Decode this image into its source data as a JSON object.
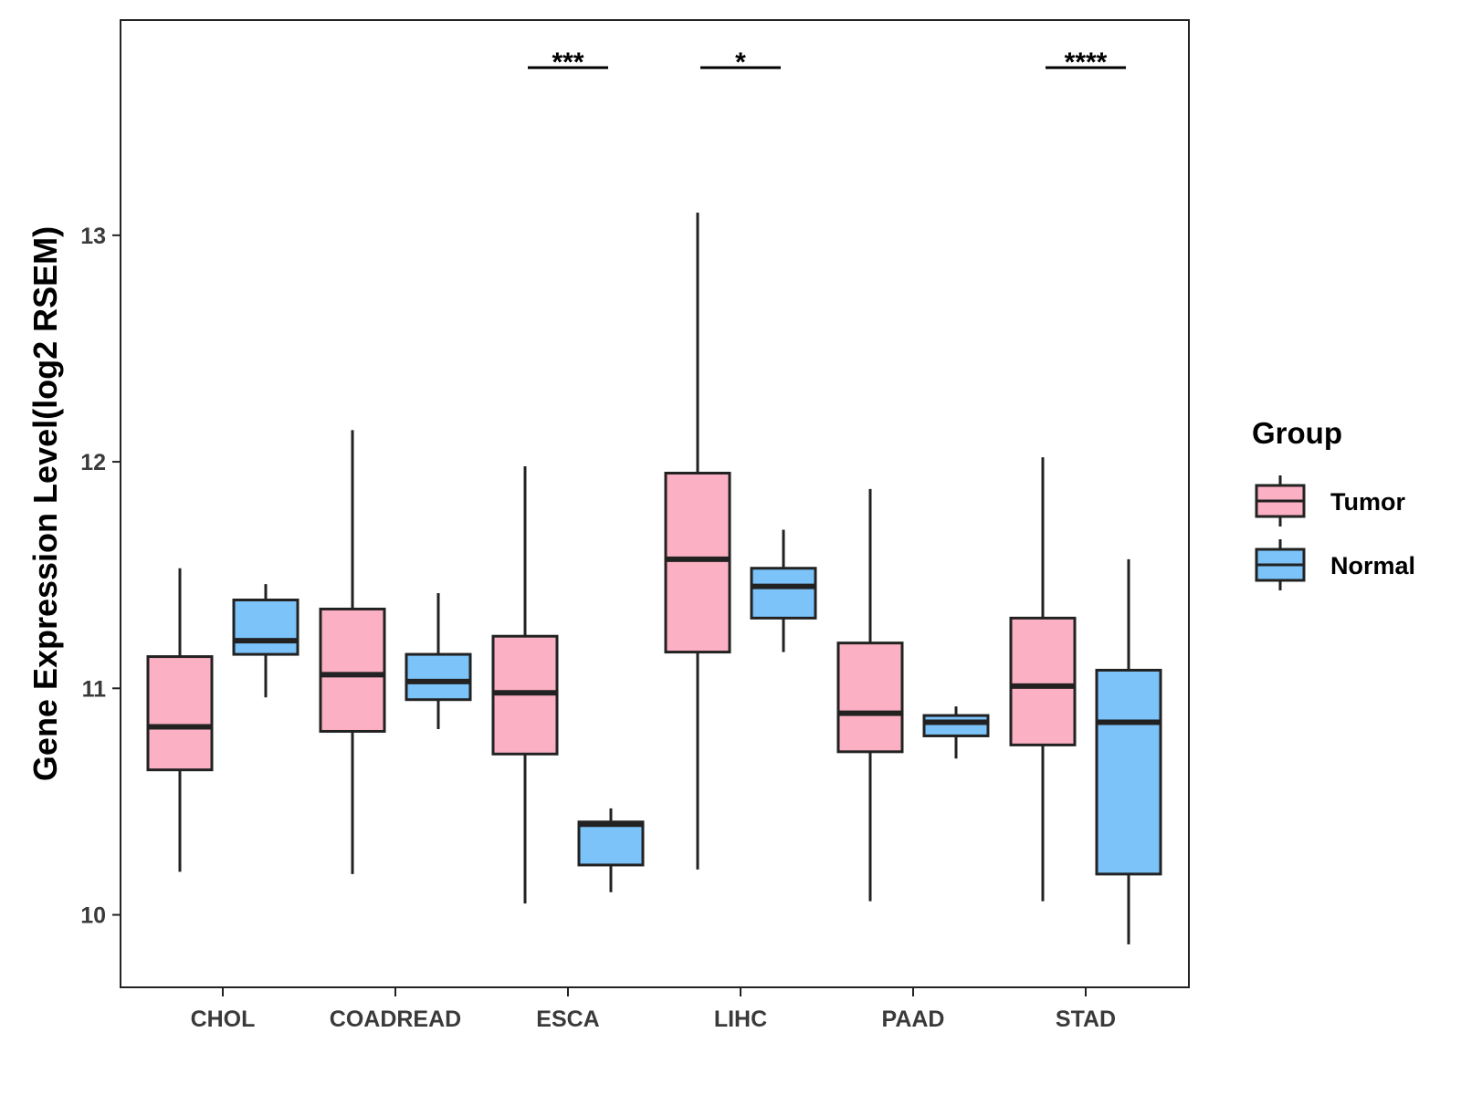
{
  "chart_data": {
    "type": "boxplot",
    "title": "",
    "xlabel": "",
    "ylabel": "Gene Expression Level(log2 RSEM)",
    "ylim": [
      9.68,
      13.95
    ],
    "yticks": [
      10,
      11,
      12,
      13
    ],
    "grid": false,
    "legend": {
      "title": "Group",
      "position": "right"
    },
    "categories": [
      "CHOL",
      "COADREAD",
      "ESCA",
      "LIHC",
      "PAAD",
      "STAD"
    ],
    "series": [
      {
        "name": "Tumor",
        "color": "#FBB0C3",
        "boxes": [
          {
            "min": 10.19,
            "q1": 10.64,
            "median": 10.83,
            "q3": 11.14,
            "max": 11.53
          },
          {
            "min": 10.18,
            "q1": 10.81,
            "median": 11.06,
            "q3": 11.35,
            "max": 12.14
          },
          {
            "min": 10.05,
            "q1": 10.71,
            "median": 10.98,
            "q3": 11.23,
            "max": 11.98
          },
          {
            "min": 10.2,
            "q1": 11.16,
            "median": 11.57,
            "q3": 11.95,
            "max": 13.1
          },
          {
            "min": 10.06,
            "q1": 10.72,
            "median": 10.89,
            "q3": 11.2,
            "max": 11.88
          },
          {
            "min": 10.06,
            "q1": 10.75,
            "median": 11.01,
            "q3": 11.31,
            "max": 12.02
          }
        ]
      },
      {
        "name": "Normal",
        "color": "#7BC3F8",
        "boxes": [
          {
            "min": 10.96,
            "q1": 11.15,
            "median": 11.21,
            "q3": 11.39,
            "max": 11.46
          },
          {
            "min": 10.82,
            "q1": 10.95,
            "median": 11.03,
            "q3": 11.15,
            "max": 11.42
          },
          {
            "min": 10.1,
            "q1": 10.22,
            "median": 10.4,
            "q3": 10.41,
            "max": 10.47
          },
          {
            "min": 11.16,
            "q1": 11.31,
            "median": 11.45,
            "q3": 11.53,
            "max": 11.7
          },
          {
            "min": 10.69,
            "q1": 10.79,
            "median": 10.85,
            "q3": 10.88,
            "max": 10.92
          },
          {
            "min": 9.87,
            "q1": 10.18,
            "median": 10.85,
            "q3": 11.08,
            "max": 11.57
          }
        ]
      }
    ],
    "significance": [
      {
        "category": "ESCA",
        "label": "***",
        "y": 13.74
      },
      {
        "category": "LIHC",
        "label": "*",
        "y": 13.74
      },
      {
        "category": "STAD",
        "label": "****",
        "y": 13.74
      }
    ]
  }
}
